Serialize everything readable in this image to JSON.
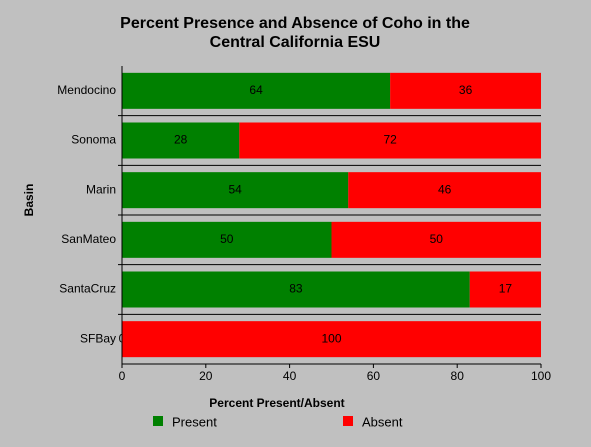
{
  "chart_data": {
    "type": "stacked_bar_horizontal",
    "title": "Percent Presence and Absence of Coho in the Central California ESU",
    "x_label": "Percent Present/Absent",
    "y_label": "Basin",
    "categories": [
      "Mendocino",
      "Sonoma",
      "Marin",
      "SanMateo",
      "SantaCruz",
      "SFBay"
    ],
    "series": [
      {
        "name": "Present",
        "color": "#008000",
        "values": [
          64,
          28,
          54,
          50,
          83,
          0
        ]
      },
      {
        "name": "Absent",
        "color": "#ff0000",
        "values": [
          36,
          72,
          46,
          50,
          17,
          100
        ]
      }
    ],
    "xlim": [
      0,
      100
    ],
    "xticks": [
      0,
      20,
      40,
      60,
      80,
      100
    ]
  }
}
